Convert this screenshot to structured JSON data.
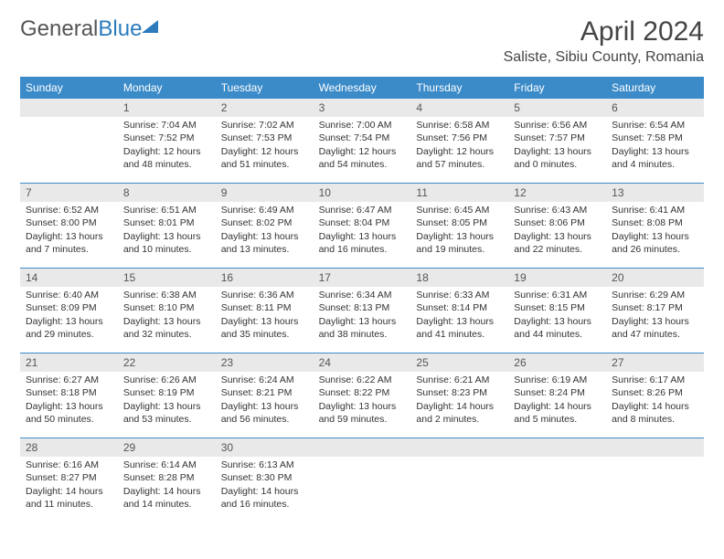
{
  "brand": {
    "part1": "General",
    "part2": "Blue"
  },
  "title": {
    "month": "April 2024",
    "location": "Saliste, Sibiu County, Romania"
  },
  "colors": {
    "header_bg": "#3b8bc9",
    "header_text": "#ffffff",
    "daynum_bg": "#e9e9e9",
    "border": "#3b8bc9",
    "brand_blue": "#2b7bbd"
  },
  "weekdays": [
    "Sunday",
    "Monday",
    "Tuesday",
    "Wednesday",
    "Thursday",
    "Friday",
    "Saturday"
  ],
  "weeks": [
    [
      {
        "n": "",
        "sunrise": "",
        "sunset": "",
        "daylight1": "",
        "daylight2": ""
      },
      {
        "n": "1",
        "sunrise": "Sunrise: 7:04 AM",
        "sunset": "Sunset: 7:52 PM",
        "daylight1": "Daylight: 12 hours",
        "daylight2": "and 48 minutes."
      },
      {
        "n": "2",
        "sunrise": "Sunrise: 7:02 AM",
        "sunset": "Sunset: 7:53 PM",
        "daylight1": "Daylight: 12 hours",
        "daylight2": "and 51 minutes."
      },
      {
        "n": "3",
        "sunrise": "Sunrise: 7:00 AM",
        "sunset": "Sunset: 7:54 PM",
        "daylight1": "Daylight: 12 hours",
        "daylight2": "and 54 minutes."
      },
      {
        "n": "4",
        "sunrise": "Sunrise: 6:58 AM",
        "sunset": "Sunset: 7:56 PM",
        "daylight1": "Daylight: 12 hours",
        "daylight2": "and 57 minutes."
      },
      {
        "n": "5",
        "sunrise": "Sunrise: 6:56 AM",
        "sunset": "Sunset: 7:57 PM",
        "daylight1": "Daylight: 13 hours",
        "daylight2": "and 0 minutes."
      },
      {
        "n": "6",
        "sunrise": "Sunrise: 6:54 AM",
        "sunset": "Sunset: 7:58 PM",
        "daylight1": "Daylight: 13 hours",
        "daylight2": "and 4 minutes."
      }
    ],
    [
      {
        "n": "7",
        "sunrise": "Sunrise: 6:52 AM",
        "sunset": "Sunset: 8:00 PM",
        "daylight1": "Daylight: 13 hours",
        "daylight2": "and 7 minutes."
      },
      {
        "n": "8",
        "sunrise": "Sunrise: 6:51 AM",
        "sunset": "Sunset: 8:01 PM",
        "daylight1": "Daylight: 13 hours",
        "daylight2": "and 10 minutes."
      },
      {
        "n": "9",
        "sunrise": "Sunrise: 6:49 AM",
        "sunset": "Sunset: 8:02 PM",
        "daylight1": "Daylight: 13 hours",
        "daylight2": "and 13 minutes."
      },
      {
        "n": "10",
        "sunrise": "Sunrise: 6:47 AM",
        "sunset": "Sunset: 8:04 PM",
        "daylight1": "Daylight: 13 hours",
        "daylight2": "and 16 minutes."
      },
      {
        "n": "11",
        "sunrise": "Sunrise: 6:45 AM",
        "sunset": "Sunset: 8:05 PM",
        "daylight1": "Daylight: 13 hours",
        "daylight2": "and 19 minutes."
      },
      {
        "n": "12",
        "sunrise": "Sunrise: 6:43 AM",
        "sunset": "Sunset: 8:06 PM",
        "daylight1": "Daylight: 13 hours",
        "daylight2": "and 22 minutes."
      },
      {
        "n": "13",
        "sunrise": "Sunrise: 6:41 AM",
        "sunset": "Sunset: 8:08 PM",
        "daylight1": "Daylight: 13 hours",
        "daylight2": "and 26 minutes."
      }
    ],
    [
      {
        "n": "14",
        "sunrise": "Sunrise: 6:40 AM",
        "sunset": "Sunset: 8:09 PM",
        "daylight1": "Daylight: 13 hours",
        "daylight2": "and 29 minutes."
      },
      {
        "n": "15",
        "sunrise": "Sunrise: 6:38 AM",
        "sunset": "Sunset: 8:10 PM",
        "daylight1": "Daylight: 13 hours",
        "daylight2": "and 32 minutes."
      },
      {
        "n": "16",
        "sunrise": "Sunrise: 6:36 AM",
        "sunset": "Sunset: 8:11 PM",
        "daylight1": "Daylight: 13 hours",
        "daylight2": "and 35 minutes."
      },
      {
        "n": "17",
        "sunrise": "Sunrise: 6:34 AM",
        "sunset": "Sunset: 8:13 PM",
        "daylight1": "Daylight: 13 hours",
        "daylight2": "and 38 minutes."
      },
      {
        "n": "18",
        "sunrise": "Sunrise: 6:33 AM",
        "sunset": "Sunset: 8:14 PM",
        "daylight1": "Daylight: 13 hours",
        "daylight2": "and 41 minutes."
      },
      {
        "n": "19",
        "sunrise": "Sunrise: 6:31 AM",
        "sunset": "Sunset: 8:15 PM",
        "daylight1": "Daylight: 13 hours",
        "daylight2": "and 44 minutes."
      },
      {
        "n": "20",
        "sunrise": "Sunrise: 6:29 AM",
        "sunset": "Sunset: 8:17 PM",
        "daylight1": "Daylight: 13 hours",
        "daylight2": "and 47 minutes."
      }
    ],
    [
      {
        "n": "21",
        "sunrise": "Sunrise: 6:27 AM",
        "sunset": "Sunset: 8:18 PM",
        "daylight1": "Daylight: 13 hours",
        "daylight2": "and 50 minutes."
      },
      {
        "n": "22",
        "sunrise": "Sunrise: 6:26 AM",
        "sunset": "Sunset: 8:19 PM",
        "daylight1": "Daylight: 13 hours",
        "daylight2": "and 53 minutes."
      },
      {
        "n": "23",
        "sunrise": "Sunrise: 6:24 AM",
        "sunset": "Sunset: 8:21 PM",
        "daylight1": "Daylight: 13 hours",
        "daylight2": "and 56 minutes."
      },
      {
        "n": "24",
        "sunrise": "Sunrise: 6:22 AM",
        "sunset": "Sunset: 8:22 PM",
        "daylight1": "Daylight: 13 hours",
        "daylight2": "and 59 minutes."
      },
      {
        "n": "25",
        "sunrise": "Sunrise: 6:21 AM",
        "sunset": "Sunset: 8:23 PM",
        "daylight1": "Daylight: 14 hours",
        "daylight2": "and 2 minutes."
      },
      {
        "n": "26",
        "sunrise": "Sunrise: 6:19 AM",
        "sunset": "Sunset: 8:24 PM",
        "daylight1": "Daylight: 14 hours",
        "daylight2": "and 5 minutes."
      },
      {
        "n": "27",
        "sunrise": "Sunrise: 6:17 AM",
        "sunset": "Sunset: 8:26 PM",
        "daylight1": "Daylight: 14 hours",
        "daylight2": "and 8 minutes."
      }
    ],
    [
      {
        "n": "28",
        "sunrise": "Sunrise: 6:16 AM",
        "sunset": "Sunset: 8:27 PM",
        "daylight1": "Daylight: 14 hours",
        "daylight2": "and 11 minutes."
      },
      {
        "n": "29",
        "sunrise": "Sunrise: 6:14 AM",
        "sunset": "Sunset: 8:28 PM",
        "daylight1": "Daylight: 14 hours",
        "daylight2": "and 14 minutes."
      },
      {
        "n": "30",
        "sunrise": "Sunrise: 6:13 AM",
        "sunset": "Sunset: 8:30 PM",
        "daylight1": "Daylight: 14 hours",
        "daylight2": "and 16 minutes."
      },
      {
        "n": "",
        "sunrise": "",
        "sunset": "",
        "daylight1": "",
        "daylight2": ""
      },
      {
        "n": "",
        "sunrise": "",
        "sunset": "",
        "daylight1": "",
        "daylight2": ""
      },
      {
        "n": "",
        "sunrise": "",
        "sunset": "",
        "daylight1": "",
        "daylight2": ""
      },
      {
        "n": "",
        "sunrise": "",
        "sunset": "",
        "daylight1": "",
        "daylight2": ""
      }
    ]
  ]
}
